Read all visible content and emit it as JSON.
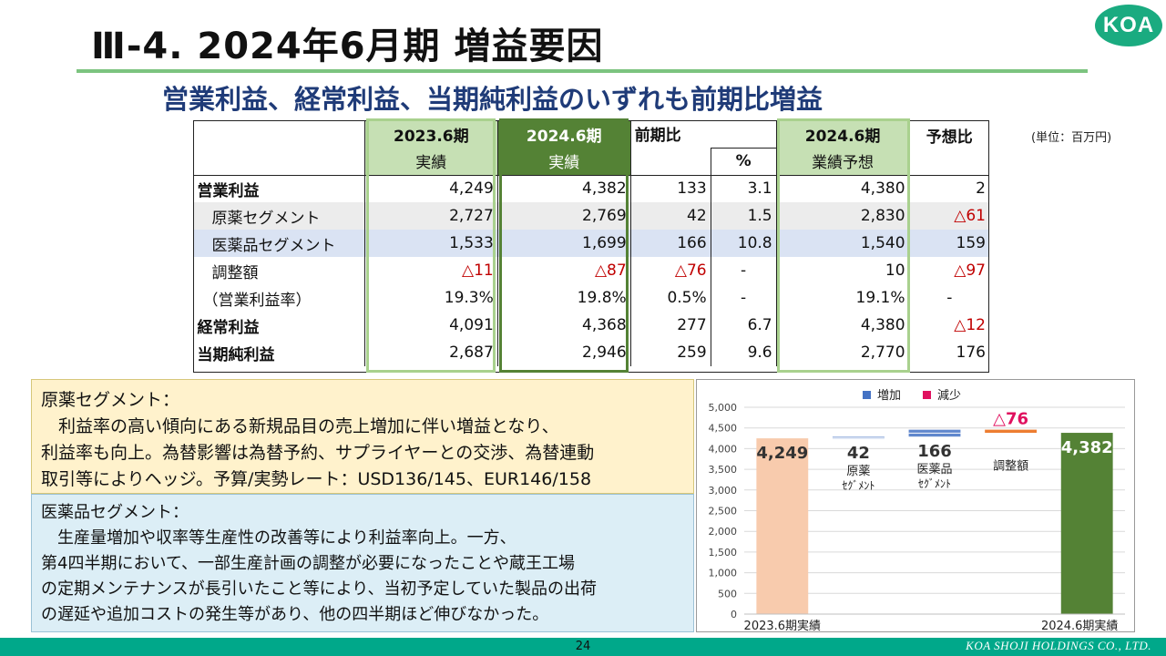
{
  "header": {
    "title": "Ⅲ-4.  2024年6月期 増益要因",
    "logo": "KOA",
    "subtitle": "営業利益、経常利益、当期純利益のいずれも前期比増益",
    "unit": "(単位：百万円)"
  },
  "table": {
    "headers": {
      "prev_period": "2023.6期",
      "prev_sub": "実績",
      "curr_period": "2024.6期",
      "curr_sub": "実績",
      "yoy": "前期比",
      "pct": "%",
      "fc_period": "2024.6期",
      "fc_sub": "業績予想",
      "vs_fc": "予想比"
    },
    "rows": [
      {
        "label": "営業利益",
        "prev": "4,249",
        "curr": "4,382",
        "diff": "133",
        "pct": "3.1",
        "fc": "4,380",
        "vs": "2"
      },
      {
        "label": "原薬セグメント",
        "prev": "2,727",
        "curr": "2,769",
        "diff": "42",
        "pct": "1.5",
        "fc": "2,830",
        "vs": "△61"
      },
      {
        "label": "医薬品セグメント",
        "prev": "1,533",
        "curr": "1,699",
        "diff": "166",
        "pct": "10.8",
        "fc": "1,540",
        "vs": "159"
      },
      {
        "label": "調整額",
        "prev": "△11",
        "curr": "△87",
        "diff": "△76",
        "pct": "-",
        "fc": "10",
        "vs": "△97"
      },
      {
        "label": "（営業利益率）",
        "prev": "19.3%",
        "curr": "19.8%",
        "diff": "0.5%",
        "pct": "-",
        "fc": "19.1%",
        "vs": "-"
      },
      {
        "label": "経常利益",
        "prev": "4,091",
        "curr": "4,368",
        "diff": "277",
        "pct": "6.7",
        "fc": "4,380",
        "vs": "△12"
      },
      {
        "label": "当期純利益",
        "prev": "2,687",
        "curr": "2,946",
        "diff": "259",
        "pct": "9.6",
        "fc": "2,770",
        "vs": "176"
      }
    ]
  },
  "notes": {
    "api": {
      "heading": "原薬セグメント：",
      "lines": [
        "　利益率の高い傾向にある新規品目の売上増加に伴い増益となり、",
        "利益率も向上。為替影響は為替予約、サプライヤーとの交渉、為替連動",
        "取引等によりヘッジ。予算/実勢レート：USD136/145、EUR146/158"
      ]
    },
    "pharma": {
      "heading": "医薬品セグメント：",
      "lines": [
        "　生産量増加や収率等生産性の改善等により利益率向上。一方、",
        "第4四半期において、一部生産計画の調整が必要になったことや蔵王工場",
        "の定期メンテナンスが長引いたこと等により、当初予定していた製品の出荷",
        "の遅延や追加コストの発生等があり、他の四半期ほど伸びなかった。"
      ]
    }
  },
  "chart_data": {
    "type": "bar",
    "subtype": "waterfall",
    "title": "",
    "legend": [
      {
        "name": "増加",
        "color": "#4472c4"
      },
      {
        "name": "減少",
        "color": "#e0115f"
      }
    ],
    "legend_position": "top",
    "ylim": [
      0,
      5000
    ],
    "y_ticks": [
      "5,000",
      "4,500",
      "4,000",
      "3,500",
      "3,000",
      "2,500",
      "2,000",
      "1,500",
      "1,000",
      "500",
      "0"
    ],
    "y_tick_values": [
      5000,
      4500,
      4000,
      3500,
      3000,
      2500,
      2000,
      1500,
      1000,
      500,
      0
    ],
    "bars": [
      {
        "category": "2023.6期実績",
        "label": "4,249",
        "base": 0,
        "value": 4249,
        "kind": "total",
        "color": "#f8cbad",
        "name": "",
        "name2": ""
      },
      {
        "category": "原薬セグメント",
        "label": "42",
        "base": 4249,
        "value": 42,
        "kind": "increase",
        "color": "#4472c4",
        "name": "原薬",
        "name2": "ｾｸﾞﾒﾝﾄ"
      },
      {
        "category": "医薬品セグメント",
        "label": "166",
        "base": 4291,
        "value": 166,
        "kind": "increase",
        "color": "#4472c4",
        "name": "医薬品",
        "name2": "ｾｸﾞﾒﾝﾄ"
      },
      {
        "category": "調整額",
        "label": "△76",
        "base": 4382,
        "value": 76,
        "kind": "decrease",
        "color": "#ed7d31",
        "name": "調整額",
        "name2": ""
      },
      {
        "category": "2024.6期実績",
        "label": "4,382",
        "base": 0,
        "value": 4382,
        "kind": "total",
        "color": "#548235",
        "name": "",
        "name2": ""
      }
    ],
    "x_labels": [
      "2023.6期実績",
      "2024.6期実績"
    ]
  },
  "footer": {
    "page": "24",
    "company": "KOA SHOJI HOLDINGS CO., LTD."
  }
}
